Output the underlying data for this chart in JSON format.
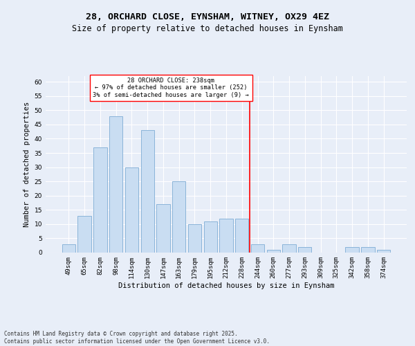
{
  "title": "28, ORCHARD CLOSE, EYNSHAM, WITNEY, OX29 4EZ",
  "subtitle": "Size of property relative to detached houses in Eynsham",
  "xlabel": "Distribution of detached houses by size in Eynsham",
  "ylabel": "Number of detached properties",
  "footer": "Contains HM Land Registry data © Crown copyright and database right 2025.\nContains public sector information licensed under the Open Government Licence v3.0.",
  "bar_labels": [
    "49sqm",
    "65sqm",
    "82sqm",
    "98sqm",
    "114sqm",
    "130sqm",
    "147sqm",
    "163sqm",
    "179sqm",
    "195sqm",
    "212sqm",
    "228sqm",
    "244sqm",
    "260sqm",
    "277sqm",
    "293sqm",
    "309sqm",
    "325sqm",
    "342sqm",
    "358sqm",
    "374sqm"
  ],
  "bar_values": [
    3,
    13,
    37,
    48,
    30,
    43,
    17,
    25,
    10,
    11,
    12,
    12,
    3,
    1,
    3,
    2,
    0,
    0,
    2,
    2,
    1
  ],
  "bar_color": "#c9ddf2",
  "bar_edge_color": "#8ab4d9",
  "background_color": "#e8eef8",
  "grid_color": "#ffffff",
  "vline_x_index": 11.5,
  "vline_color": "red",
  "annotation_text": "28 ORCHARD CLOSE: 238sqm\n← 97% of detached houses are smaller (252)\n3% of semi-detached houses are larger (9) →",
  "annotation_box_color": "white",
  "annotation_box_edge_color": "red",
  "ylim": [
    0,
    62
  ],
  "yticks": [
    0,
    5,
    10,
    15,
    20,
    25,
    30,
    35,
    40,
    45,
    50,
    55,
    60
  ],
  "title_fontsize": 9.5,
  "subtitle_fontsize": 8.5,
  "axis_label_fontsize": 7.5,
  "tick_fontsize": 6.5,
  "annotation_fontsize": 6.2,
  "footer_fontsize": 5.5
}
